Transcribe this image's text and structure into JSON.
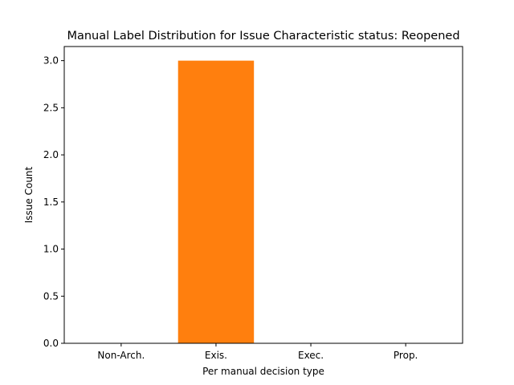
{
  "chart_data": {
    "type": "bar",
    "title": "Manual Label Distribution for Issue Characteristic status: Reopened",
    "xlabel": "Per manual decision type",
    "ylabel": "Issue Count",
    "categories": [
      "Non-Arch.",
      "Exis.",
      "Exec.",
      "Prop."
    ],
    "values": [
      0,
      3,
      0,
      0
    ],
    "bar_colors": [
      "#1f77b4",
      "#ff7f0e",
      "#2ca02c",
      "#d62728"
    ],
    "ylim": [
      0,
      3.15
    ],
    "yticks": [
      "0.0",
      "0.5",
      "1.0",
      "1.5",
      "2.0",
      "2.5",
      "3.0"
    ],
    "ytick_values": [
      0,
      0.5,
      1.0,
      1.5,
      2.0,
      2.5,
      3.0
    ],
    "grid": false,
    "legend": "none"
  }
}
